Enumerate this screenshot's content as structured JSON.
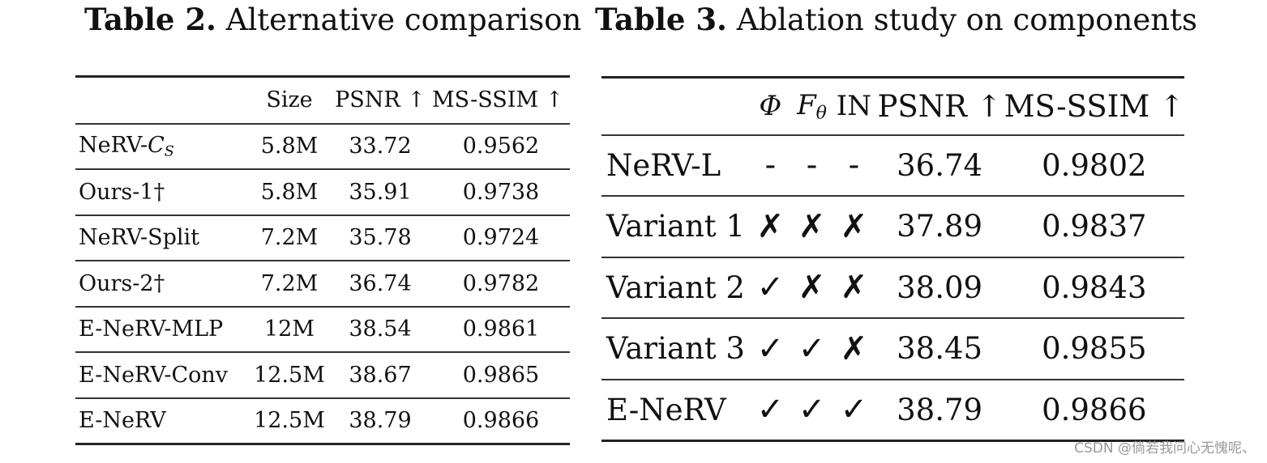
{
  "table2": {
    "caption_label": "Table 2.",
    "caption_text": "Alternative comparison",
    "headers": {
      "name": "",
      "size": "Size",
      "psnr": "PSNR ↑",
      "ssim": "MS-SSIM ↑"
    },
    "rows": [
      {
        "name": "NeRV-",
        "name_italic": "C",
        "name_sub": "S",
        "size": "5.8M",
        "psnr": "33.72",
        "ssim": "0.9562"
      },
      {
        "name": "Ours-1†",
        "size": "5.8M",
        "psnr": "35.91",
        "ssim": "0.9738"
      },
      {
        "name": "NeRV-Split",
        "size": "7.2M",
        "psnr": "35.78",
        "ssim": "0.9724"
      },
      {
        "name": "Ours-2†",
        "size": "7.2M",
        "psnr": "36.74",
        "ssim": "0.9782"
      },
      {
        "name": "E-NeRV-MLP",
        "size": "12M",
        "psnr": "38.54",
        "ssim": "0.9861"
      },
      {
        "name": "E-NeRV-Conv",
        "size": "12.5M",
        "psnr": "38.67",
        "ssim": "0.9865"
      },
      {
        "name": "E-NeRV",
        "size": "12.5M",
        "psnr": "38.79",
        "ssim": "0.9866"
      }
    ]
  },
  "table3": {
    "caption_label": "Table 3.",
    "caption_text": "Ablation study on components",
    "headers": {
      "phi": "Φ",
      "f_main": "F",
      "f_sub": "θ",
      "in": "IN",
      "psnr": "PSNR ↑",
      "ssim": "MS-SSIM ↑"
    },
    "rows": [
      {
        "name": "NeRV-L",
        "phi": "-",
        "f": "-",
        "in": "-",
        "psnr": "36.74",
        "ssim": "0.9802"
      },
      {
        "name": "Variant 1",
        "phi": "✗",
        "f": "✗",
        "in": "✗",
        "psnr": "37.89",
        "ssim": "0.9837"
      },
      {
        "name": "Variant 2",
        "phi": "✓",
        "f": "✗",
        "in": "✗",
        "psnr": "38.09",
        "ssim": "0.9843"
      },
      {
        "name": "Variant 3",
        "phi": "✓",
        "f": "✓",
        "in": "✗",
        "psnr": "38.45",
        "ssim": "0.9855"
      },
      {
        "name": "E-NeRV",
        "phi": "✓",
        "f": "✓",
        "in": "✓",
        "psnr": "38.79",
        "ssim": "0.9866"
      }
    ]
  },
  "watermark": "CSDN @倘若我问心无愧呢、"
}
